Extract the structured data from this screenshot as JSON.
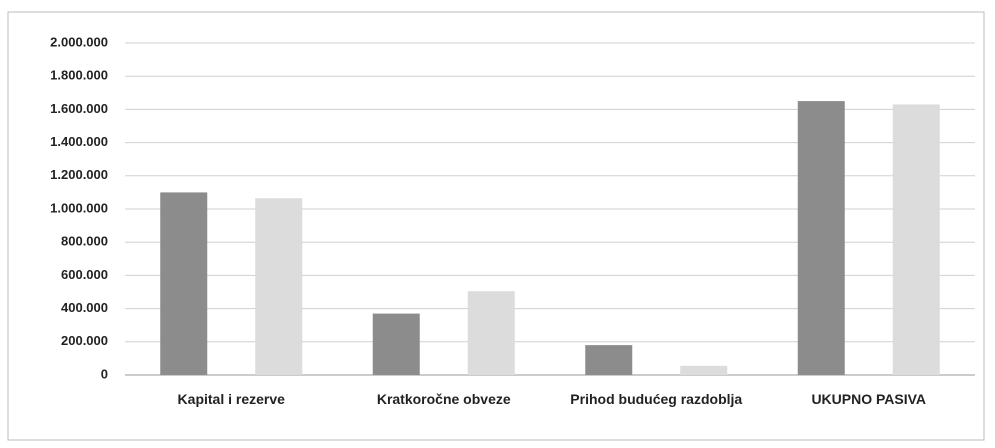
{
  "chart_data": {
    "type": "bar",
    "categories": [
      "Kapital i rezerve",
      "Kratkoročne obveze",
      "Prihod budućeg razdoblja",
      "UKUPNO PASIVA"
    ],
    "series": [
      {
        "color": "#8c8c8c",
        "values": [
          1100000,
          370000,
          180000,
          1650000
        ]
      },
      {
        "color": "#dcdcdc",
        "values": [
          1065000,
          505000,
          55000,
          1630000
        ]
      }
    ],
    "ylim": [
      0,
      2000000
    ],
    "yticks": [
      0,
      {
        "value": 200000,
        "label": "200.000"
      },
      {
        "value": 400000,
        "label": "400.000"
      },
      {
        "value": 600000,
        "label": "600.000"
      },
      {
        "value": 800000,
        "label": "800.000"
      },
      {
        "value": 1000000,
        "label": "1.000.000"
      },
      {
        "value": 1200000,
        "label": "1.200.000"
      },
      {
        "value": 1400000,
        "label": "1.400.000"
      },
      {
        "value": 1600000,
        "label": "1.600.000"
      },
      {
        "value": 1800000,
        "label": "1.800.000"
      },
      {
        "value": 2000000,
        "label": "2.000.000"
      }
    ],
    "grid": true
  }
}
